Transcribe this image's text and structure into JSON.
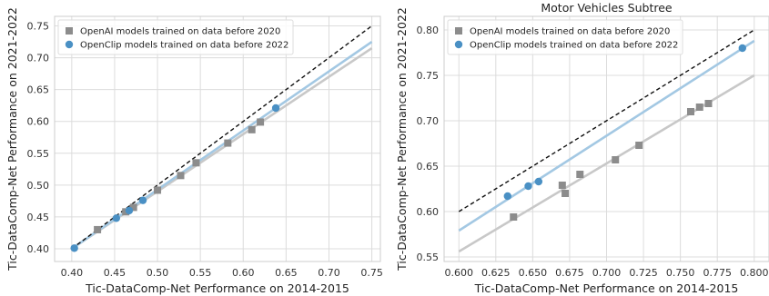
{
  "chart_data": [
    {
      "type": "scatter",
      "title": "",
      "xlabel": "Tic-DataComp-Net Performance on 2014-2015",
      "ylabel": "Tic-DataComp-Net Performance on 2021-2022",
      "xlim": [
        0.38,
        0.76
      ],
      "ylim": [
        0.38,
        0.765
      ],
      "xticks": [
        "0.40",
        "0.45",
        "0.50",
        "0.55",
        "0.60",
        "0.65",
        "0.70",
        "0.75"
      ],
      "yticks": [
        "0.40",
        "0.45",
        "0.50",
        "0.55",
        "0.60",
        "0.65",
        "0.70",
        "0.75"
      ],
      "grid": true,
      "legend_position": "top-left",
      "series": [
        {
          "name": "OpenAI models trained on data before 2020",
          "marker": "square",
          "color": "#8c8c8c",
          "points": [
            [
              0.43,
              0.43
            ],
            [
              0.463,
              0.458
            ],
            [
              0.472,
              0.465
            ],
            [
              0.5,
              0.492
            ],
            [
              0.527,
              0.515
            ],
            [
              0.545,
              0.535
            ],
            [
              0.582,
              0.566
            ],
            [
              0.61,
              0.587
            ],
            [
              0.62,
              0.599
            ]
          ],
          "fit": [
            [
              0.4,
              0.4
            ],
            [
              0.75,
              0.715
            ]
          ],
          "fit_color": "#c8c8c8"
        },
        {
          "name": "OpenClip models trained on data before 2022",
          "marker": "circle",
          "color": "#4a90c4",
          "points": [
            [
              0.403,
              0.401
            ],
            [
              0.452,
              0.448
            ],
            [
              0.467,
              0.46
            ],
            [
              0.483,
              0.476
            ],
            [
              0.638,
              0.621
            ]
          ],
          "fit": [
            [
              0.4,
              0.4
            ],
            [
              0.75,
              0.725
            ]
          ],
          "fit_color": "#a3c8e3"
        }
      ],
      "reference_line": [
        [
          0.4,
          0.4
        ],
        [
          0.75,
          0.75
        ]
      ]
    },
    {
      "type": "scatter",
      "title": "Motor Vehicles Subtree",
      "xlabel": "Tic-DataComp-Net Performance on 2014-2015",
      "ylabel": "Tic-DataComp-Net Performance on 2021-2022",
      "xlim": [
        0.59,
        0.81
      ],
      "ylim": [
        0.545,
        0.815
      ],
      "xticks": [
        "0.600",
        "0.625",
        "0.650",
        "0.675",
        "0.700",
        "0.725",
        "0.750",
        "0.775",
        "0.800"
      ],
      "yticks": [
        "0.55",
        "0.60",
        "0.65",
        "0.70",
        "0.75",
        "0.80"
      ],
      "grid": true,
      "legend_position": "top-left",
      "series": [
        {
          "name": "OpenAI models trained on data before 2020",
          "marker": "square",
          "color": "#8c8c8c",
          "points": [
            [
              0.637,
              0.594
            ],
            [
              0.67,
              0.629
            ],
            [
              0.672,
              0.62
            ],
            [
              0.682,
              0.641
            ],
            [
              0.706,
              0.657
            ],
            [
              0.722,
              0.673
            ],
            [
              0.757,
              0.71
            ],
            [
              0.763,
              0.715
            ],
            [
              0.769,
              0.719
            ]
          ],
          "fit": [
            [
              0.6,
              0.556
            ],
            [
              0.8,
              0.75
            ]
          ],
          "fit_color": "#c8c8c8"
        },
        {
          "name": "OpenClip models trained on data before 2022",
          "marker": "circle",
          "color": "#4a90c4",
          "points": [
            [
              0.633,
              0.617
            ],
            [
              0.647,
              0.628
            ],
            [
              0.654,
              0.633
            ],
            [
              0.792,
              0.78
            ]
          ],
          "fit": [
            [
              0.6,
              0.579
            ],
            [
              0.8,
              0.788
            ]
          ],
          "fit_color": "#a3c8e3"
        }
      ],
      "reference_line": [
        [
          0.6,
          0.6
        ],
        [
          0.8,
          0.8
        ]
      ]
    }
  ]
}
